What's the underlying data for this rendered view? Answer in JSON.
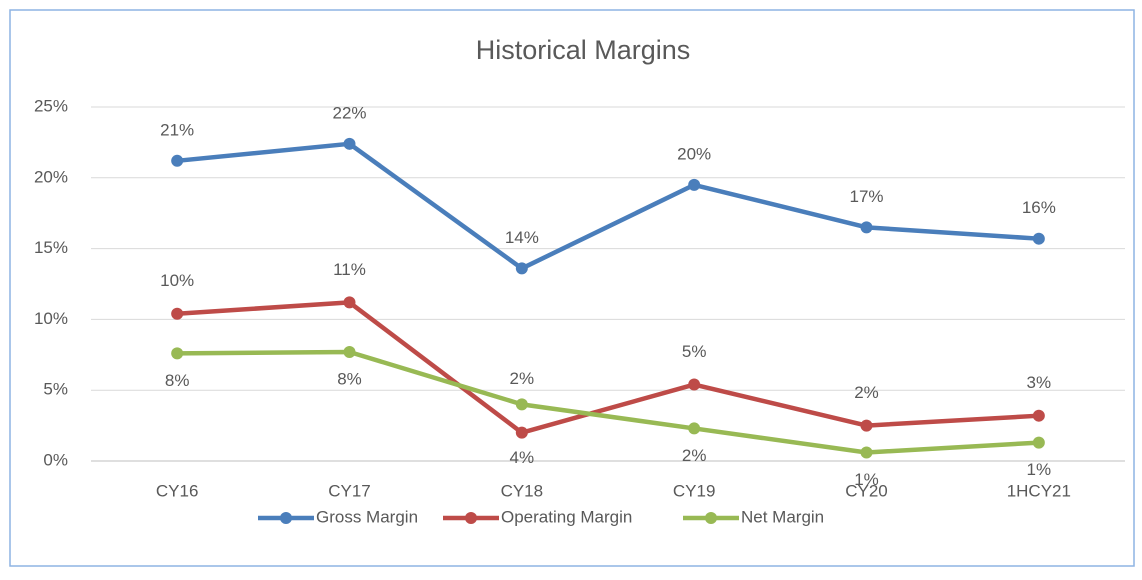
{
  "chart_data": {
    "type": "line",
    "title": "Historical Margins",
    "categories": [
      "CY16",
      "CY17",
      "CY18",
      "CY19",
      "CY20",
      "1HCY21"
    ],
    "series": [
      {
        "name": "Gross Margin",
        "color": "#4a7ebb",
        "values": [
          21.2,
          22.4,
          13.6,
          19.5,
          16.5,
          15.7
        ],
        "value_labels": [
          "21%",
          "22%",
          "14%",
          "20%",
          "17%",
          "16%"
        ]
      },
      {
        "name": "Operating Margin",
        "color": "#be4b48",
        "values": [
          10.4,
          11.2,
          2.0,
          5.4,
          2.5,
          3.2
        ],
        "value_labels": [
          "10%",
          "11%",
          "2%",
          "5%",
          "2%",
          "3%"
        ]
      },
      {
        "name": "Net Margin",
        "color": "#98b954",
        "values": [
          7.6,
          7.7,
          4.0,
          2.3,
          0.6,
          1.3
        ],
        "value_labels": [
          "8%",
          "8%",
          "4%",
          "2%",
          "1%",
          "1%"
        ]
      }
    ],
    "ylim": [
      0,
      25
    ],
    "yticks": [
      {
        "value": 0,
        "label": "0%"
      },
      {
        "value": 5,
        "label": "5%"
      },
      {
        "value": 10,
        "label": "10%"
      },
      {
        "value": 15,
        "label": "15%"
      },
      {
        "value": 20,
        "label": "20%"
      },
      {
        "value": 25,
        "label": "25%"
      }
    ],
    "grid": true,
    "legend": "bottom"
  }
}
